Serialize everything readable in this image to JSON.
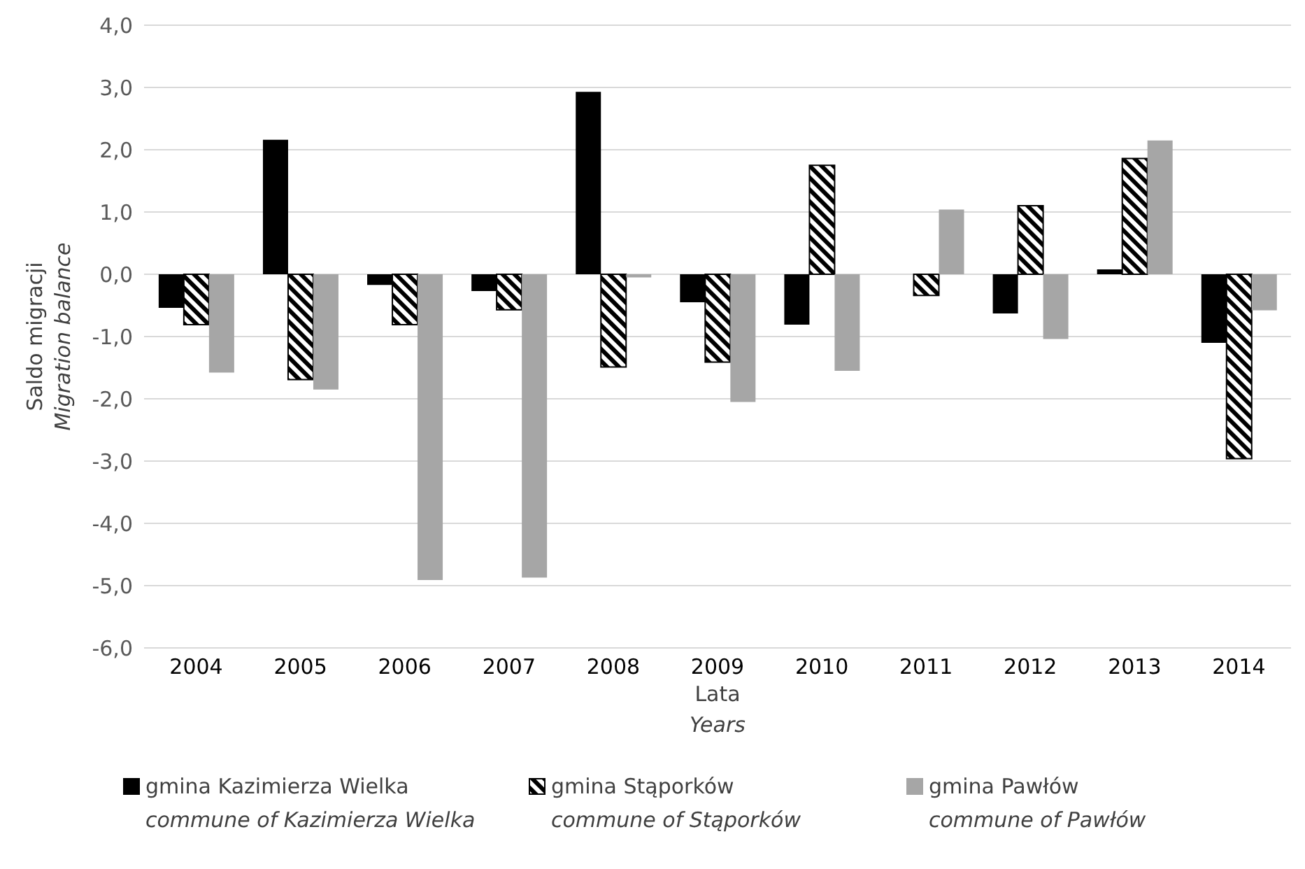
{
  "chart_data": {
    "type": "bar",
    "xlabel": "Lata\nYears",
    "ylabel": "Saldo migracji\nMigration balance",
    "categories": [
      "2004",
      "2005",
      "2006",
      "2007",
      "2008",
      "2009",
      "2010",
      "2011",
      "2012",
      "2013",
      "2014"
    ],
    "series": [
      {
        "name": "gmina Kazimierza Wielka\ncommune of Kazimierza Wielka",
        "color": "#000000",
        "values": [
          -0.54,
          2.16,
          -0.17,
          -0.27,
          2.93,
          -0.45,
          -0.81,
          0,
          -0.63,
          0.08,
          -1.1
        ]
      },
      {
        "name": "gmina Stąporków\ncommune of Stąporków",
        "color": "#000000",
        "values": [
          -0.81,
          -1.69,
          -0.81,
          -0.57,
          -1.49,
          -1.41,
          1.75,
          -0.34,
          1.1,
          1.86,
          -2.96
        ]
      },
      {
        "name": "gmina Pawłów\ncommune of Pawłów",
        "color": "#a6a6a6",
        "values": [
          -1.58,
          -1.85,
          -4.91,
          -4.87,
          -0.05,
          -2.05,
          -1.55,
          1.04,
          -1.04,
          2.15,
          -0.58
        ]
      }
    ],
    "ylim": [
      -6,
      4
    ],
    "yticks": [
      {
        "value": -6,
        "label": "-6,0"
      },
      {
        "value": -5,
        "label": "-5,0"
      },
      {
        "value": -4,
        "label": "-4,0"
      },
      {
        "value": -3,
        "label": "-3,0"
      },
      {
        "value": -2,
        "label": "-2,0"
      },
      {
        "value": -1,
        "label": "-1,0"
      },
      {
        "value": 0,
        "label": "0,0"
      },
      {
        "value": 1,
        "label": "1,0"
      },
      {
        "value": 2,
        "label": "2,0"
      },
      {
        "value": 3,
        "label": "3,0"
      },
      {
        "value": 4,
        "label": "4,0"
      }
    ],
    "grid": "y",
    "legend": "bottom"
  }
}
